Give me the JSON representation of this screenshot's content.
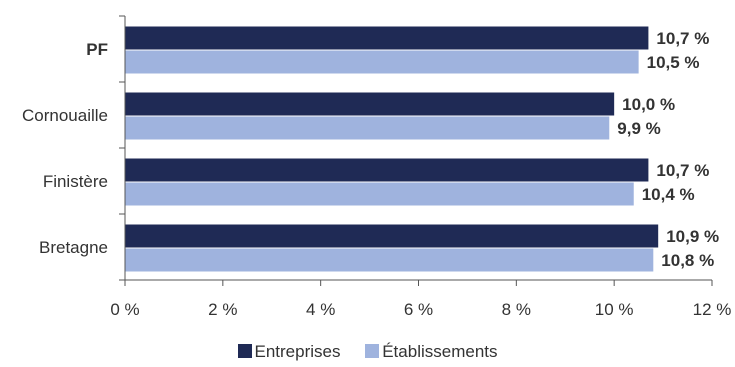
{
  "chart_data": {
    "type": "bar",
    "orientation": "horizontal",
    "categories": [
      "PF",
      "Cornouaille",
      "Finistère",
      "Bretagne"
    ],
    "category_bold": [
      true,
      false,
      false,
      false
    ],
    "series": [
      {
        "name": "Entreprises",
        "color": "#1f2a55",
        "values": [
          10.7,
          10.0,
          10.7,
          10.9
        ],
        "labels": [
          "10,7 %",
          "10,0 %",
          "10,7 %",
          "10,9 %"
        ]
      },
      {
        "name": "Établissements",
        "color": "#9fb3de",
        "values": [
          10.5,
          9.9,
          10.4,
          10.8
        ],
        "labels": [
          "10,5 %",
          "9,9 %",
          "10,4 %",
          "10,8 %"
        ]
      }
    ],
    "x_ticks": [
      0,
      2,
      4,
      6,
      8,
      10,
      12
    ],
    "x_tick_labels": [
      "0 %",
      "2 %",
      "4 %",
      "6 %",
      "8 %",
      "10 %",
      "12 %"
    ],
    "xlim": [
      0,
      12
    ],
    "grid": false,
    "legend": {
      "position": "bottom"
    }
  }
}
